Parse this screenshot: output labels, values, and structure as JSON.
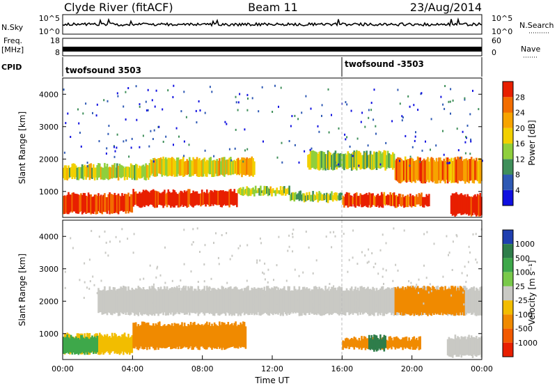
{
  "header": {
    "title_left": "Clyde River (fitACF)",
    "title_center": "Beam 11",
    "title_right": "23/Aug/2014"
  },
  "panels": {
    "nsky": {
      "label": "N.Sky",
      "left_top": "10^5",
      "left_bottom": "10^0",
      "right_top": "10^5",
      "right_bottom": "10^0",
      "right_label": "N.Search"
    },
    "freq": {
      "label_line1": "Freq.",
      "label_line2": "[MHz]",
      "left_top": "18",
      "left_bottom": "8",
      "right_top": "60",
      "right_bottom": "0",
      "right_label": "Nave"
    },
    "cpid": {
      "label": "CPID",
      "mode1": "twofsound 3503",
      "mode2": "twofsound -3503"
    }
  },
  "chart_data": [
    {
      "type": "heatmap",
      "name": "power",
      "xlabel": "",
      "ylabel": "Slant Range [km]",
      "ylim": [
        200,
        4500
      ],
      "xlim": [
        0,
        24
      ],
      "yticks": [
        1000,
        2000,
        3000,
        4000
      ],
      "colorbar": {
        "label": "Power [dB]",
        "ticks": [
          "4",
          "8",
          "12",
          "16",
          "20",
          "24",
          "28"
        ],
        "colors": [
          "#1010e0",
          "#2e59b4",
          "#3f8f5a",
          "#8fcf3c",
          "#f2d000",
          "#f7a400",
          "#f36d00",
          "#e81f00"
        ]
      },
      "bands": [
        {
          "from": 0,
          "to": 4,
          "low": 350,
          "high": 900,
          "level": 0.95
        },
        {
          "from": 4,
          "to": 10,
          "low": 550,
          "high": 1000,
          "level": 1.0
        },
        {
          "from": 10,
          "to": 13,
          "low": 900,
          "high": 1100,
          "level": 0.5
        },
        {
          "from": 13,
          "to": 16,
          "low": 700,
          "high": 950,
          "level": 0.45
        },
        {
          "from": 16,
          "to": 21,
          "low": 550,
          "high": 900,
          "level": 0.85
        },
        {
          "from": 22.2,
          "to": 24,
          "low": 280,
          "high": 900,
          "level": 0.98
        },
        {
          "from": 0,
          "to": 5,
          "low": 1400,
          "high": 1800,
          "level": 0.5
        },
        {
          "from": 5,
          "to": 11,
          "low": 1500,
          "high": 2000,
          "level": 0.6
        },
        {
          "from": 14,
          "to": 19,
          "low": 1700,
          "high": 2200,
          "level": 0.45
        },
        {
          "from": 19,
          "to": 24,
          "low": 1300,
          "high": 2000,
          "level": 0.75
        }
      ]
    },
    {
      "type": "heatmap",
      "name": "velocity",
      "xlabel": "Time UT",
      "ylabel": "Slant Range [km]",
      "ylim": [
        200,
        4500
      ],
      "xlim": [
        0,
        24
      ],
      "yticks": [
        1000,
        2000,
        3000,
        4000
      ],
      "xticks": [
        "00:00",
        "04:00",
        "08:00",
        "12:00",
        "16:00",
        "20:00",
        "00:00"
      ],
      "colorbar": {
        "label": "Velocity [m s⁻¹]",
        "ticks": [
          "1000",
          "500",
          "100",
          "25",
          "-25",
          "-100",
          "-500",
          "-1000"
        ],
        "colors": [
          "#1f3fb0",
          "#2e7d4a",
          "#3ea84a",
          "#79c94a",
          "#c9c9c4",
          "#f2bd00",
          "#f08a00",
          "#f25a00",
          "#e81f00"
        ]
      },
      "bands": [
        {
          "from": 0,
          "to": 4,
          "low": 400,
          "high": 950,
          "color": "#f2bd00"
        },
        {
          "from": 0,
          "to": 2,
          "low": 400,
          "high": 900,
          "color": "#3ea84a"
        },
        {
          "from": 4,
          "to": 10.5,
          "low": 550,
          "high": 1300,
          "color": "#f08a00"
        },
        {
          "from": 16,
          "to": 20.5,
          "low": 550,
          "high": 850,
          "color": "#f08a00"
        },
        {
          "from": 17.5,
          "to": 18.5,
          "low": 500,
          "high": 900,
          "color": "#2e7d4a"
        },
        {
          "from": 22,
          "to": 24,
          "low": 300,
          "high": 900,
          "color": "#c9c9c4"
        },
        {
          "from": 2,
          "to": 24,
          "low": 1600,
          "high": 2400,
          "color": "#c9c9c4"
        },
        {
          "from": 19,
          "to": 23,
          "low": 1600,
          "high": 2400,
          "color": "#f08a00"
        }
      ]
    }
  ]
}
